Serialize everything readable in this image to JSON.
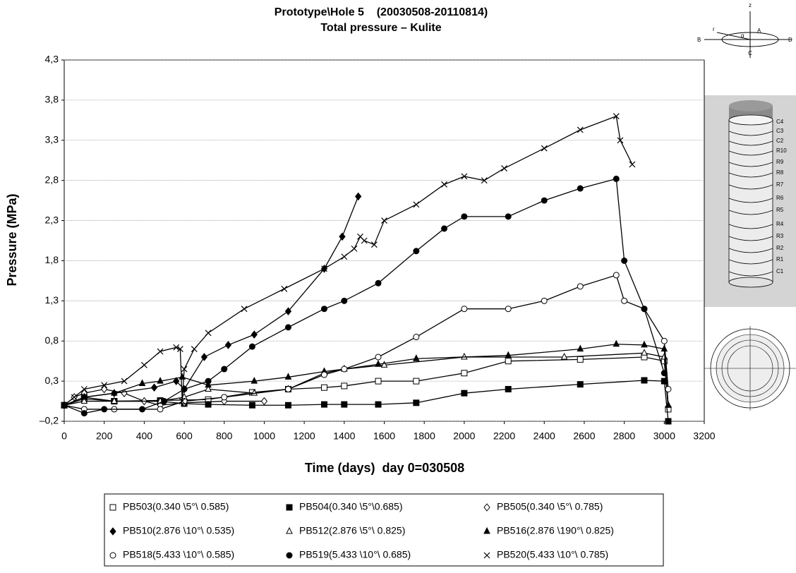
{
  "chart_data": {
    "type": "line",
    "title": "Prototype\\Hole 5    (20030508-20110814)",
    "subtitle": "Total pressure – Kulite",
    "x_label": "Time (days)  day 0=030508",
    "y_label": "Pressure (MPa)",
    "xlim": [
      0,
      3200
    ],
    "xticks": [
      0,
      200,
      400,
      600,
      800,
      1000,
      1200,
      1400,
      1600,
      1800,
      2000,
      2200,
      2400,
      2600,
      2800,
      3000,
      3200
    ],
    "ylim": [
      -0.2,
      4.3
    ],
    "yticks": [
      {
        "value": -0.2,
        "label": "–0,2"
      },
      {
        "value": 0.3,
        "label": "0,3"
      },
      {
        "value": 0.8,
        "label": "0,8"
      },
      {
        "value": 1.3,
        "label": "1,3"
      },
      {
        "value": 1.8,
        "label": "1,8"
      },
      {
        "value": 2.3,
        "label": "2,3"
      },
      {
        "value": 2.8,
        "label": "2,8"
      },
      {
        "value": 3.3,
        "label": "3,3"
      },
      {
        "value": 3.8,
        "label": "3,8"
      },
      {
        "value": 4.3,
        "label": "4,3"
      }
    ],
    "grid": true,
    "legend": "bottom",
    "series": [
      {
        "name": "PB503(0.340 \\5°\\ 0.585)",
        "color": "#000000",
        "marker": "square-open",
        "x": [
          0,
          100,
          250,
          480,
          720,
          940,
          1120,
          1300,
          1400,
          1570,
          1760,
          2000,
          2220,
          2580,
          2900,
          3000,
          3020
        ],
        "values": [
          0,
          0.08,
          0.05,
          0.06,
          0.07,
          0.16,
          0.2,
          0.22,
          0.24,
          0.3,
          0.3,
          0.4,
          0.55,
          0.57,
          0.6,
          0.55,
          -0.05
        ]
      },
      {
        "name": "PB504(0.340 \\5°\\0.685)",
        "color": "#000000",
        "marker": "square",
        "x": [
          0,
          100,
          250,
          480,
          600,
          720,
          940,
          1120,
          1300,
          1400,
          1570,
          1760,
          2000,
          2220,
          2580,
          2900,
          3000,
          3020
        ],
        "values": [
          0,
          0.1,
          0.05,
          0.05,
          0.02,
          0.01,
          0,
          0,
          0.01,
          0.01,
          0.01,
          0.03,
          0.15,
          0.2,
          0.26,
          0.31,
          0.3,
          -0.2
        ]
      },
      {
        "name": "PB505(0.340 \\5°\\ 0.785)",
        "color": "#000000",
        "marker": "diamond-open",
        "x": [
          0,
          50,
          100,
          200,
          300,
          400,
          480,
          600,
          800,
          1000
        ],
        "values": [
          0,
          0.1,
          0.15,
          0.2,
          0.15,
          0.05,
          0,
          0.03,
          0.05,
          0.05
        ]
      },
      {
        "name": "PB510(2.876 \\10°\\ 0.535)",
        "color": "#000000",
        "marker": "diamond",
        "x": [
          0,
          100,
          250,
          450,
          560,
          600,
          700,
          820,
          950,
          1120,
          1300,
          1390,
          1470
        ],
        "values": [
          0,
          0.1,
          0.15,
          0.22,
          0.3,
          0.2,
          0.6,
          0.75,
          0.88,
          1.17,
          1.7,
          2.1,
          2.6
        ]
      },
      {
        "name": "PB512(2.876 \\5°\\ 0.825)",
        "color": "#000000",
        "marker": "triangle-open",
        "x": [
          0,
          100,
          250,
          480,
          600,
          720,
          950,
          1120,
          1300,
          1400,
          1600,
          2000,
          2500,
          2900,
          3000,
          3020
        ],
        "values": [
          0,
          0.05,
          0.05,
          0.05,
          0.1,
          0.2,
          0.15,
          0.2,
          0.4,
          0.45,
          0.5,
          0.6,
          0.6,
          0.65,
          0.6,
          0
        ]
      },
      {
        "name": "PB516(2.876 \\190°\\ 0.825)",
        "color": "#000000",
        "marker": "triangle",
        "x": [
          0,
          100,
          250,
          390,
          480,
          590,
          720,
          950,
          1120,
          1300,
          1400,
          1570,
          1760,
          2220,
          2580,
          2760,
          2900,
          3000,
          3020
        ],
        "values": [
          0,
          0.1,
          0.15,
          0.27,
          0.3,
          0.35,
          0.25,
          0.3,
          0.35,
          0.42,
          0.45,
          0.51,
          0.58,
          0.62,
          0.7,
          0.76,
          0.75,
          0.7,
          0
        ]
      },
      {
        "name": "PB518(5.433 \\10°\\ 0.585)",
        "color": "#000000",
        "marker": "circle-open",
        "x": [
          0,
          100,
          250,
          480,
          600,
          800,
          1120,
          1300,
          1400,
          1570,
          1760,
          2000,
          2220,
          2400,
          2580,
          2760,
          2800,
          2900,
          3000,
          3020
        ],
        "values": [
          0,
          -0.05,
          -0.05,
          -0.05,
          0.05,
          0.1,
          0.2,
          0.38,
          0.45,
          0.6,
          0.85,
          1.2,
          1.2,
          1.3,
          1.48,
          1.62,
          1.3,
          1.2,
          0.8,
          0.2
        ]
      },
      {
        "name": "PB519(5.433 \\10°\\ 0.685)",
        "color": "#000000",
        "marker": "circle",
        "x": [
          0,
          100,
          200,
          390,
          500,
          600,
          720,
          800,
          940,
          1120,
          1300,
          1400,
          1570,
          1760,
          1900,
          2000,
          2220,
          2400,
          2580,
          2760,
          2800,
          2900,
          3000
        ],
        "values": [
          0,
          -0.1,
          -0.05,
          -0.05,
          0.05,
          0.2,
          0.3,
          0.45,
          0.73,
          0.97,
          1.2,
          1.3,
          1.52,
          1.92,
          2.2,
          2.35,
          2.35,
          2.55,
          2.7,
          2.82,
          1.8,
          1.2,
          0.4
        ]
      },
      {
        "name": "PB520(5.433 \\10°\\ 0.785)",
        "color": "#000000",
        "marker": "cross",
        "x": [
          0,
          50,
          100,
          200,
          300,
          400,
          480,
          560,
          580,
          590,
          600,
          650,
          720,
          900,
          1100,
          1300,
          1400,
          1450,
          1480,
          1500,
          1550,
          1600,
          1760,
          1900,
          2000,
          2100,
          2200,
          2400,
          2580,
          2760,
          2780,
          2840
        ],
        "values": [
          0,
          0.1,
          0.2,
          0.25,
          0.3,
          0.5,
          0.67,
          0.72,
          0.7,
          0.05,
          0.45,
          0.7,
          0.9,
          1.2,
          1.45,
          1.7,
          1.85,
          1.95,
          2.1,
          2.05,
          2.0,
          2.3,
          2.5,
          2.75,
          2.85,
          2.8,
          2.95,
          3.2,
          3.43,
          3.6,
          3.3,
          3.0
        ]
      }
    ]
  },
  "diagram": {
    "axis_labels": [
      "z",
      "A",
      "B",
      "r",
      "α",
      "D",
      "C"
    ],
    "ring_labels": [
      "C4",
      "C3",
      "C2",
      "R10",
      "R9",
      "R8",
      "R7",
      "R6",
      "R5",
      "R4",
      "R3",
      "R2",
      "R1",
      "C1"
    ]
  }
}
